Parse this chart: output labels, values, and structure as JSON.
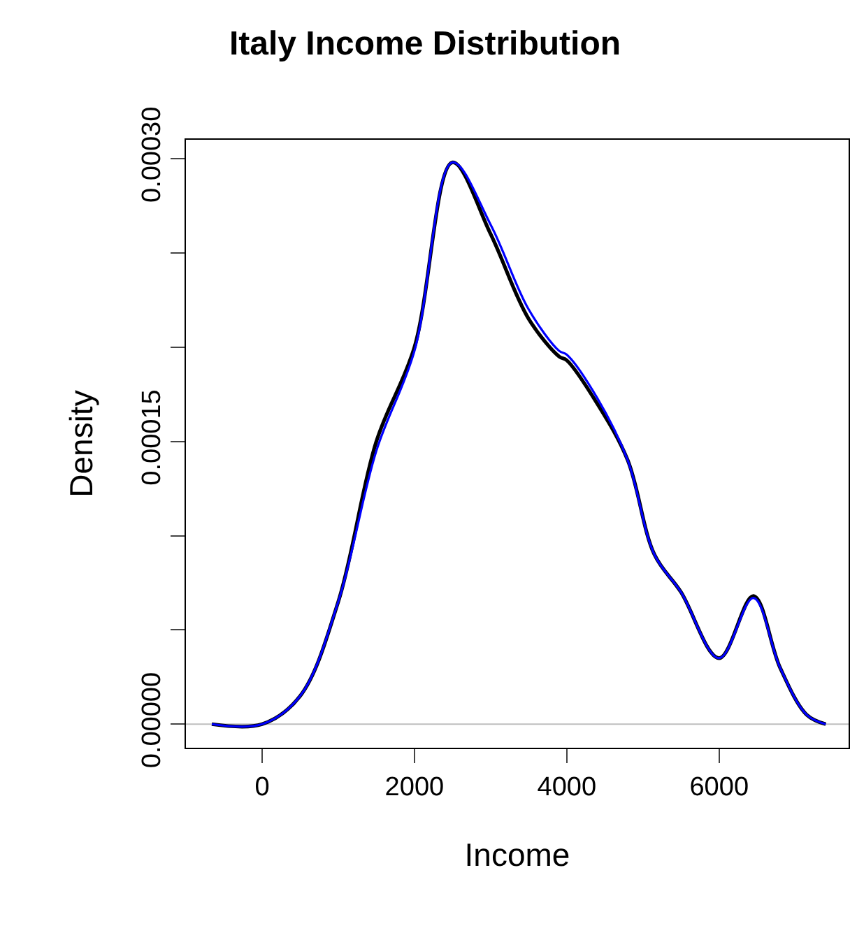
{
  "chart_data": {
    "type": "line",
    "title": "Italy Income Distribution",
    "xlabel": "Income",
    "ylabel": "Density",
    "xlim": [
      -1000,
      7700
    ],
    "xticks": [
      0,
      2000,
      4000,
      6000
    ],
    "ylim": [
      -1.25e-05,
      0.00031
    ],
    "yticks": [
      {
        "value": 0,
        "label": "0.00000"
      },
      {
        "value": 5e-05,
        "label": null
      },
      {
        "value": 0.0001,
        "label": null
      },
      {
        "value": 0.00015,
        "label": "0.00015"
      },
      {
        "value": 0.0002,
        "label": null
      },
      {
        "value": 0.00025,
        "label": null
      },
      {
        "value": 0.0003,
        "label": "0.00030"
      }
    ],
    "grid": false,
    "line_style": "solid",
    "marker": "none",
    "ref_lines": [
      {
        "axis": "y",
        "value": 0,
        "color": "#bebebe"
      }
    ],
    "series": [
      {
        "color": "#000000",
        "x": [
          -660,
          0,
          500,
          1000,
          1500,
          2000,
          2500,
          3000,
          3500,
          3900,
          4000,
          4400,
          4800,
          5150,
          5500,
          6000,
          6450,
          6800,
          7150,
          7400
        ],
        "values": [
          0,
          0,
          1.5e-05,
          6.5e-05,
          0.00015,
          0.0002,
          0.000298,
          0.00026,
          0.000215,
          0.000195,
          0.000193,
          0.00017,
          0.00014,
          9e-05,
          7e-05,
          3.5e-05,
          6.8e-05,
          3e-05,
          5e-06,
          0
        ]
      },
      {
        "color": "#0000ff",
        "x": [
          -660,
          0,
          500,
          1000,
          1500,
          2000,
          2500,
          3000,
          3500,
          3900,
          4000,
          4400,
          4800,
          5150,
          5500,
          6000,
          6450,
          6800,
          7150,
          7400
        ],
        "values": [
          0,
          0,
          1.5e-05,
          6.5e-05,
          0.000145,
          0.000198,
          0.000298,
          0.000265,
          0.00022,
          0.000198,
          0.000196,
          0.000173,
          0.00014,
          9e-05,
          7e-05,
          3.5e-05,
          6.7e-05,
          3e-05,
          5e-06,
          0
        ]
      }
    ]
  }
}
